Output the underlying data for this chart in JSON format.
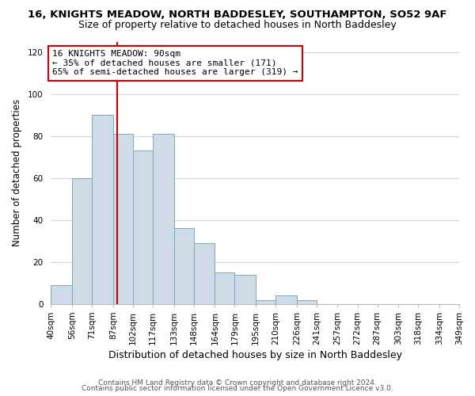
{
  "title1": "16, KNIGHTS MEADOW, NORTH BADDESLEY, SOUTHAMPTON, SO52 9AF",
  "title2": "Size of property relative to detached houses in North Baddesley",
  "xlabel": "Distribution of detached houses by size in North Baddesley",
  "ylabel": "Number of detached properties",
  "bar_color": "#cfdce8",
  "bar_edge_color": "#7aaabf",
  "vline_x": 90,
  "vline_color": "#cc0000",
  "annotation_title": "16 KNIGHTS MEADOW: 90sqm",
  "annotation_line1": "← 35% of detached houses are smaller (171)",
  "annotation_line2": "65% of semi-detached houses are larger (319) →",
  "annotation_box_color": "white",
  "annotation_box_edge": "#cc0000",
  "bin_edges": [
    40,
    56,
    71,
    87,
    102,
    117,
    133,
    148,
    164,
    179,
    195,
    210,
    226,
    241,
    257,
    272,
    287,
    303,
    318,
    334,
    349
  ],
  "bar_heights": [
    9,
    60,
    90,
    81,
    73,
    81,
    36,
    29,
    15,
    14,
    2,
    4,
    2,
    0,
    0,
    0,
    0,
    0,
    0,
    0
  ],
  "ylim": [
    0,
    125
  ],
  "yticks": [
    0,
    20,
    40,
    60,
    80,
    100,
    120
  ],
  "footer1": "Contains HM Land Registry data © Crown copyright and database right 2024.",
  "footer2": "Contains public sector information licensed under the Open Government Licence v3.0.",
  "bg_color": "#ffffff",
  "grid_color": "#d0d8e0",
  "title1_fontsize": 9.5,
  "title2_fontsize": 9,
  "xlabel_fontsize": 9,
  "ylabel_fontsize": 8.5,
  "tick_fontsize": 7.5,
  "annot_fontsize": 8,
  "footer_fontsize": 6.5
}
